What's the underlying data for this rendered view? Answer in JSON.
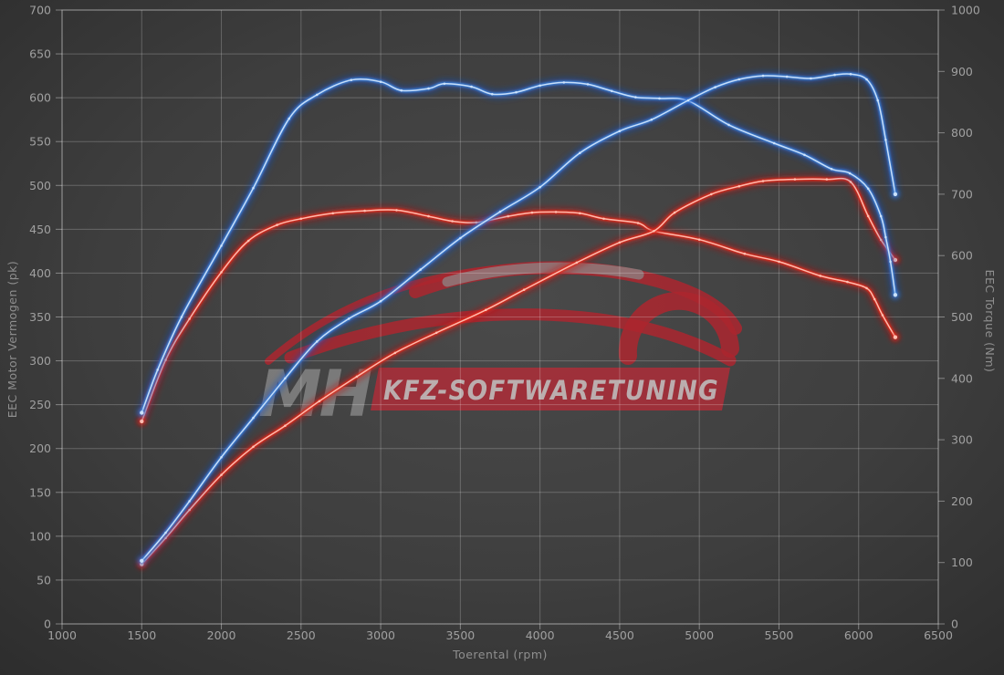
{
  "chart_data": {
    "type": "line",
    "title": "",
    "xlabel": "Toerental (rpm)",
    "ylabel_left": "EEC Motor Vermogen (pk)",
    "ylabel_right": "EEC Torque (Nm)",
    "x_range": [
      1000,
      6500
    ],
    "y_left_range": [
      0,
      700
    ],
    "y_right_range": [
      0,
      1000
    ],
    "x_ticks": [
      1000,
      1500,
      2000,
      2500,
      3000,
      3500,
      4000,
      4500,
      5000,
      5500,
      6000,
      6500
    ],
    "y_left_ticks": [
      0,
      50,
      100,
      150,
      200,
      250,
      300,
      350,
      400,
      450,
      500,
      550,
      600,
      650,
      700
    ],
    "y_right_ticks": [
      0,
      100,
      200,
      300,
      400,
      500,
      600,
      700,
      800,
      900,
      1000
    ],
    "grid": true,
    "legend": "none",
    "series": [
      {
        "id": "torque-original",
        "axis": "right",
        "unit": "Nm",
        "color": "#e62619",
        "core": "#ffc3b5",
        "glow": "#c01010",
        "points": [
          [
            1500,
            330
          ],
          [
            1650,
            430
          ],
          [
            1800,
            497
          ],
          [
            2000,
            573
          ],
          [
            2170,
            624
          ],
          [
            2350,
            650
          ],
          [
            2500,
            660
          ],
          [
            2700,
            669
          ],
          [
            2900,
            673
          ],
          [
            3100,
            674
          ],
          [
            3300,
            664
          ],
          [
            3450,
            656
          ],
          [
            3600,
            654
          ],
          [
            3800,
            664
          ],
          [
            3950,
            670
          ],
          [
            4100,
            671
          ],
          [
            4250,
            669
          ],
          [
            4400,
            660
          ],
          [
            4615,
            653
          ],
          [
            4715,
            640
          ],
          [
            5000,
            626
          ],
          [
            5285,
            603
          ],
          [
            5500,
            590
          ],
          [
            5760,
            567
          ],
          [
            5930,
            557
          ],
          [
            6050,
            547
          ],
          [
            6100,
            529
          ],
          [
            6150,
            503
          ],
          [
            6230,
            467
          ]
        ]
      },
      {
        "id": "power-original",
        "axis": "left",
        "unit": "pk",
        "color": "#e62619",
        "core": "#ffc3b5",
        "glow": "#c01010",
        "points": [
          [
            1500,
            68
          ],
          [
            1650,
            98
          ],
          [
            1800,
            130
          ],
          [
            2000,
            170
          ],
          [
            2200,
            202
          ],
          [
            2400,
            226
          ],
          [
            2615,
            254
          ],
          [
            2850,
            282
          ],
          [
            3090,
            309
          ],
          [
            3350,
            332
          ],
          [
            3660,
            358
          ],
          [
            3900,
            381
          ],
          [
            4230,
            412
          ],
          [
            4500,
            435
          ],
          [
            4715,
            448
          ],
          [
            4845,
            469
          ],
          [
            5075,
            490
          ],
          [
            5250,
            499
          ],
          [
            5400,
            505
          ],
          [
            5600,
            507
          ],
          [
            5800,
            507
          ],
          [
            5950,
            504
          ],
          [
            6060,
            465
          ],
          [
            6140,
            438
          ],
          [
            6230,
            415
          ]
        ]
      },
      {
        "id": "torque-tuned",
        "axis": "right",
        "unit": "Nm",
        "color": "#3b82dd",
        "core": "#cfe4fb",
        "glow": "#1850c8",
        "points": [
          [
            1500,
            344
          ],
          [
            1600,
            414
          ],
          [
            1750,
            500
          ],
          [
            2000,
            616
          ],
          [
            2200,
            710
          ],
          [
            2425,
            823
          ],
          [
            2600,
            862
          ],
          [
            2815,
            886
          ],
          [
            3000,
            883
          ],
          [
            3130,
            869
          ],
          [
            3300,
            872
          ],
          [
            3400,
            880
          ],
          [
            3570,
            875
          ],
          [
            3700,
            863
          ],
          [
            3850,
            866
          ],
          [
            4000,
            877
          ],
          [
            4150,
            882
          ],
          [
            4300,
            879
          ],
          [
            4450,
            868
          ],
          [
            4600,
            858
          ],
          [
            4750,
            856
          ],
          [
            4930,
            852
          ],
          [
            5185,
            813
          ],
          [
            5470,
            783
          ],
          [
            5660,
            764
          ],
          [
            5830,
            741
          ],
          [
            5945,
            734
          ],
          [
            6060,
            709
          ],
          [
            6140,
            664
          ],
          [
            6170,
            630
          ],
          [
            6200,
            590
          ],
          [
            6230,
            536
          ]
        ]
      },
      {
        "id": "power-tuned",
        "axis": "left",
        "unit": "pk",
        "color": "#3b82dd",
        "core": "#cfe4fb",
        "glow": "#1850c8",
        "points": [
          [
            1500,
            72
          ],
          [
            1650,
            104
          ],
          [
            1800,
            140
          ],
          [
            2000,
            190
          ],
          [
            2200,
            235
          ],
          [
            2400,
            280
          ],
          [
            2600,
            322
          ],
          [
            2800,
            348
          ],
          [
            3000,
            368
          ],
          [
            3250,
            404
          ],
          [
            3500,
            440
          ],
          [
            3750,
            470
          ],
          [
            4000,
            498
          ],
          [
            4250,
            537
          ],
          [
            4500,
            562
          ],
          [
            4700,
            575
          ],
          [
            4930,
            597
          ],
          [
            5100,
            612
          ],
          [
            5250,
            621
          ],
          [
            5400,
            625
          ],
          [
            5550,
            624
          ],
          [
            5700,
            622
          ],
          [
            5850,
            626
          ],
          [
            5950,
            627
          ],
          [
            6050,
            621
          ],
          [
            6120,
            597
          ],
          [
            6170,
            552
          ],
          [
            6230,
            490
          ]
        ]
      }
    ],
    "watermark": {
      "initials": "MH",
      "banner_text": "KFZ-SOFTWARETUNING",
      "car_color": "#b2252e",
      "banner_color": "#aa2e38",
      "initials_color": "#8a8a8a"
    },
    "colors": {
      "background": "#3e3e3e",
      "grid": "#ffffff",
      "tick_text": "#a0a0a0",
      "tuned": "#3b82dd",
      "original": "#e62619"
    }
  }
}
